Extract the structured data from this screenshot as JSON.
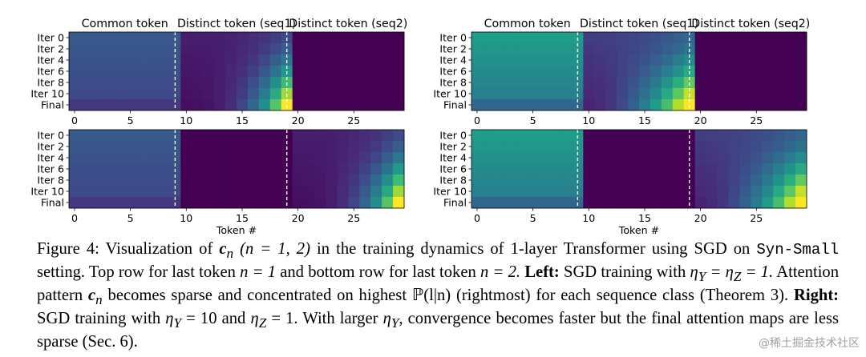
{
  "colors": {
    "viridis": [
      "#440154",
      "#482878",
      "#3e4989",
      "#31688e",
      "#26828e",
      "#1f9e89",
      "#35b779",
      "#6ece58",
      "#b5de2b",
      "#fde725"
    ]
  },
  "figure": {
    "column_titles": [
      "Common token",
      "Distinct token (seq1)",
      "Distinct token (seq2)"
    ],
    "row_labels": [
      "Iter 0",
      "Iter 2",
      "Iter 4",
      "Iter 6",
      "Iter 8",
      "Iter 10",
      "Final"
    ],
    "x_ticks": [
      "0",
      "5",
      "10",
      "15",
      "20",
      "25"
    ],
    "xlabel": "Token #",
    "watermark": "@稀土掘金技术社区"
  },
  "chart_data": [
    {
      "type": "heatmap",
      "name": "left-top",
      "xlabel": "",
      "ylabel": "",
      "categories": [
        "Iter 0",
        "Iter 2",
        "Iter 4",
        "Iter 6",
        "Iter 8",
        "Iter 10",
        "Final"
      ],
      "x": [
        0,
        29
      ],
      "description_values": {
        "common": 0.3,
        "seq1_max_final": 1.0,
        "seq2": 0.0
      }
    },
    {
      "type": "heatmap",
      "name": "left-bottom",
      "xlabel": "Token #",
      "ylabel": "",
      "categories": [
        "Iter 0",
        "Iter 2",
        "Iter 4",
        "Iter 6",
        "Iter 8",
        "Iter 10",
        "Final"
      ],
      "x": [
        0,
        29
      ],
      "description_values": {
        "common": 0.3,
        "seq1": 0.0,
        "seq2_max_final": 1.0
      }
    },
    {
      "type": "heatmap",
      "name": "right-top",
      "xlabel": "",
      "ylabel": "",
      "categories": [
        "Iter 0",
        "Iter 2",
        "Iter 4",
        "Iter 6",
        "Iter 8",
        "Iter 10",
        "Final"
      ],
      "x": [
        0,
        29
      ],
      "description_values": {
        "common": 0.55,
        "seq1_max_final": 1.0,
        "seq2": 0.0
      }
    },
    {
      "type": "heatmap",
      "name": "right-bottom",
      "xlabel": "Token #",
      "ylabel": "",
      "categories": [
        "Iter 0",
        "Iter 2",
        "Iter 4",
        "Iter 6",
        "Iter 8",
        "Iter 10",
        "Final"
      ],
      "x": [
        0,
        29
      ],
      "description_values": {
        "common": 0.55,
        "seq1": 0.0,
        "seq2_max_final": 1.0
      }
    }
  ],
  "caption": {
    "label": "Figure 4:",
    "t1": "Visualization of",
    "sym_c": "c",
    "sub_n": "n",
    "paren": "(n = 1, 2)",
    "t2": "in the training dynamics of 1-layer Transformer using SGD on",
    "syn": "Syn-Small",
    "t3": "setting. Top row for last token",
    "n1": "n = 1",
    "t4": "and bottom row for last token",
    "n2": "n = 2.",
    "left_b": "Left:",
    "t5": "SGD training with",
    "eq1": "η",
    "sY": "Y",
    "eqm": " = η",
    "sZ": "Z",
    "eqe": " = 1.",
    "t6": "Attention pattern",
    "t7": "becomes sparse and concentrated on highest",
    "prob": "ℙ(l|n)",
    "t8": "(rightmost) for each sequence class (Theorem 3).",
    "right_b": "Right:",
    "t9": "SGD training with",
    "eq2a": " = 10 and ",
    "eq2b": " = 1.",
    "t10": "With larger",
    "t11": "convergence becomes faster but the final attention maps are less sparse (Sec. 6)."
  }
}
